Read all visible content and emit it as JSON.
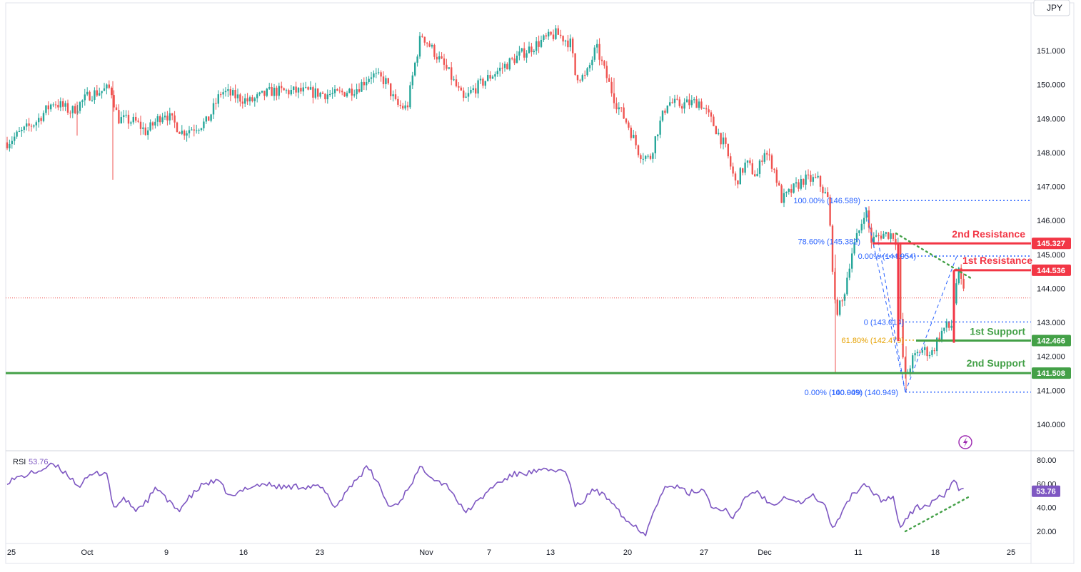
{
  "currency_button": "JPY",
  "chart_data": {
    "type": "candlestick",
    "title": "",
    "price_axis": {
      "ticks": [
        "151.000",
        "150.000",
        "149.000",
        "148.000",
        "147.000",
        "146.000",
        "145.000",
        "144.000",
        "143.000",
        "142.000",
        "141.000",
        "140.000"
      ],
      "ylim": [
        139.1,
        152.4
      ]
    },
    "x_ticks": [
      "25",
      "Oct",
      "9",
      "16",
      "23",
      "Nov",
      "7",
      "13",
      "20",
      "27",
      "Dec",
      "11",
      "18",
      "25"
    ],
    "last_price": 143.72,
    "levels": [
      {
        "label": "2nd Resistance",
        "value": 145.327,
        "badge": "145.327",
        "color": "#f23645"
      },
      {
        "label": "1st Resistance",
        "value": 144.536,
        "badge": "144.536",
        "color": "#f23645"
      },
      {
        "label": "1st Support",
        "value": 142.466,
        "badge": "142.466",
        "color": "#43a047"
      },
      {
        "label": "2nd Support",
        "value": 141.508,
        "badge": "141.508",
        "color": "#43a047"
      }
    ],
    "fib_labels": [
      {
        "text": "100.00% (146.589)",
        "value": 146.589,
        "color": "#2962ff"
      },
      {
        "text": "78.60% (145.382)",
        "value": 145.382,
        "color": "#2962ff"
      },
      {
        "text": "0.00% (144.954)",
        "value": 144.954,
        "color": "#2962ff"
      },
      {
        "text": "0 (143.014)",
        "value": 143.014,
        "color": "#2962ff"
      },
      {
        "text": "61.80% (142.479)",
        "value": 142.479,
        "color": "#e6a100"
      },
      {
        "text": "0.00% (140.949)",
        "value": 140.949,
        "color": "#2962ff"
      },
      {
        "text": "100.00% (140.949)",
        "value": 140.949,
        "color": "#2962ff"
      }
    ],
    "rsi": {
      "label": "RSI",
      "value": "53.76",
      "ticks": [
        "80.00",
        "60.00",
        "40.00",
        "20.00"
      ],
      "ylim": [
        10,
        88
      ],
      "color": "#7e57c2"
    },
    "colors": {
      "up": "#26a69a",
      "down": "#ef5350"
    }
  }
}
